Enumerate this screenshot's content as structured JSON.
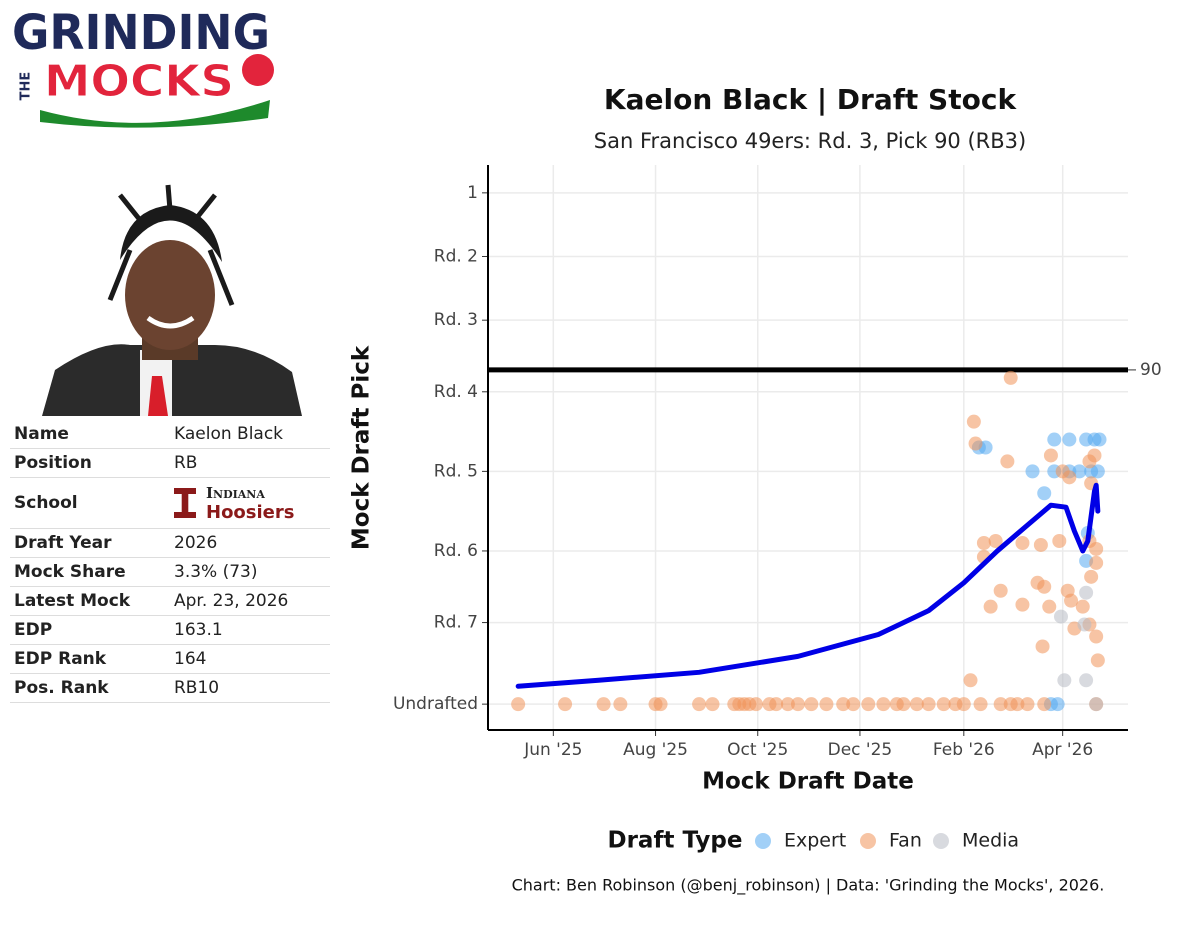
{
  "logo": {
    "line1": "GRINDING",
    "line2": "THE",
    "line3": "MOCKS"
  },
  "profile": {
    "rows": [
      {
        "label": "Name",
        "value": "Kaelon Black"
      },
      {
        "label": "Position",
        "value": "RB"
      },
      {
        "label": "School",
        "value": {
          "line1": "Indiana",
          "line2": "Hoosiers"
        }
      },
      {
        "label": "Draft Year",
        "value": "2026"
      },
      {
        "label": "Mock Share",
        "value": "3.3% (73)"
      },
      {
        "label": "Latest Mock",
        "value": "Apr. 23, 2026"
      },
      {
        "label": "EDP",
        "value": "163.1"
      },
      {
        "label": "EDP Rank",
        "value": "164"
      },
      {
        "label": "Pos. Rank",
        "value": "RB10"
      }
    ]
  },
  "chart_data": {
    "type": "scatter",
    "title": "Kaelon Black | Draft Stock",
    "subtitle": "San Francisco 49ers: Rd. 3, Pick 90 (RB3)",
    "x_label": "Mock Draft Date",
    "y_label": "Mock Draft Pick",
    "legend_title": "Draft Type",
    "caption": "Chart: Ben Robinson (@benj_robinson) | Data: 'Grinding the Mocks', 2026.",
    "xlim": [
      "2025-04-23",
      "2026-05-10"
    ],
    "xticks": [
      {
        "value": "2025-06-01",
        "label": "Jun '25"
      },
      {
        "value": "2025-08-01",
        "label": "Aug '25"
      },
      {
        "value": "2025-10-01",
        "label": "Oct '25"
      },
      {
        "value": "2025-12-01",
        "label": "Dec '25"
      },
      {
        "value": "2026-02-01",
        "label": "Feb '26"
      },
      {
        "value": "2026-04-01",
        "label": "Apr '26"
      }
    ],
    "ylim": [
      -13,
      271
    ],
    "y_inverted": true,
    "yticks": [
      1,
      {
        "value": 33,
        "label": "Rd. 2"
      },
      {
        "value": 65,
        "label": "Rd. 3"
      },
      {
        "value": 101,
        "label": "Rd. 4"
      },
      {
        "value": 141,
        "label": "Rd. 5"
      },
      {
        "value": 181,
        "label": "Rd. 6"
      },
      {
        "value": 217,
        "label": "Rd. 7"
      },
      {
        "value": 258,
        "label": "Undrafted"
      }
    ],
    "grid": true,
    "reference_line": 90,
    "series": [
      {
        "name": "Expert",
        "color": "#56a9f0",
        "x": [
          "2026-02-10",
          "2026-02-14",
          "2026-03-14",
          "2026-03-21",
          "2026-03-27",
          "2026-04-05",
          "2026-04-15",
          "2026-04-20",
          "2026-04-23",
          "2026-03-27",
          "2026-04-05",
          "2026-04-11",
          "2026-04-18",
          "2026-04-22",
          "2026-04-16",
          "2026-04-15",
          "2026-03-29",
          "2026-03-25"
        ],
        "values": [
          129,
          129,
          141,
          152,
          125,
          125,
          125,
          125,
          125,
          141,
          141,
          141,
          141,
          141,
          172,
          186,
          258,
          258
        ]
      },
      {
        "name": "Fan",
        "color": "#f0945a",
        "x": [
          "2025-05-11",
          "2025-06-08",
          "2025-07-01",
          "2025-07-11",
          "2025-08-01",
          "2025-08-04",
          "2025-08-27",
          "2025-09-04",
          "2025-09-17",
          "2025-09-20",
          "2025-09-23",
          "2025-09-26",
          "2025-09-30",
          "2025-10-08",
          "2025-10-12",
          "2025-10-19",
          "2025-10-25",
          "2025-11-02",
          "2025-11-11",
          "2025-11-21",
          "2025-11-27",
          "2025-12-06",
          "2025-12-15",
          "2025-12-23",
          "2025-12-27",
          "2026-01-04",
          "2026-01-11",
          "2026-01-20",
          "2026-01-27",
          "2026-02-01",
          "2026-02-11",
          "2026-02-23",
          "2026-03-01",
          "2026-03-05",
          "2026-03-11",
          "2026-03-21",
          "2026-04-21",
          "2026-03-01",
          "2026-02-07",
          "2026-02-08",
          "2026-02-27",
          "2026-03-25",
          "2026-04-01",
          "2026-04-17",
          "2026-04-20",
          "2026-04-18",
          "2026-04-05",
          "2026-02-13",
          "2026-02-20",
          "2026-02-13",
          "2026-03-08",
          "2026-03-19",
          "2026-03-30",
          "2026-04-17",
          "2026-04-21",
          "2026-04-21",
          "2026-04-18",
          "2026-03-17",
          "2026-03-21",
          "2026-04-04",
          "2026-04-06",
          "2026-02-23",
          "2026-02-17",
          "2026-03-08",
          "2026-03-24",
          "2026-04-13",
          "2026-04-08",
          "2026-04-17",
          "2026-04-21",
          "2026-03-20",
          "2026-04-22",
          "2026-02-05"
        ],
        "values": [
          258,
          258,
          258,
          258,
          258,
          258,
          258,
          258,
          258,
          258,
          258,
          258,
          258,
          258,
          258,
          258,
          258,
          258,
          258,
          258,
          258,
          258,
          258,
          258,
          258,
          258,
          258,
          258,
          258,
          258,
          258,
          258,
          258,
          258,
          258,
          258,
          258,
          94,
          116,
          127,
          136,
          133,
          141,
          136,
          133,
          147,
          144,
          177,
          176,
          184,
          177,
          178,
          176,
          176,
          180,
          187,
          194,
          197,
          199,
          201,
          206,
          201,
          209,
          208,
          209,
          209,
          220,
          218,
          224,
          229,
          236,
          246
        ]
      },
      {
        "name": "Media",
        "color": "#b8bcc4",
        "x": [
          "2026-03-31",
          "2026-04-15",
          "2026-04-14",
          "2026-04-02",
          "2026-04-15",
          "2026-04-21"
        ],
        "values": [
          214,
          202,
          218,
          246,
          246,
          258
        ]
      }
    ],
    "trend": {
      "color": "#0000e6",
      "x": [
        "2025-05-11",
        "2025-06-28",
        "2025-08-27",
        "2025-10-25",
        "2025-12-12",
        "2026-01-11",
        "2026-02-01",
        "2026-02-21",
        "2026-03-11",
        "2026-03-25",
        "2026-04-03",
        "2026-04-08",
        "2026-04-13",
        "2026-04-16",
        "2026-04-20",
        "2026-04-21",
        "2026-04-22"
      ],
      "values": [
        249,
        246,
        242,
        234,
        223,
        211,
        197,
        181,
        168,
        158,
        159,
        171,
        181,
        176,
        151,
        148,
        161
      ]
    }
  }
}
